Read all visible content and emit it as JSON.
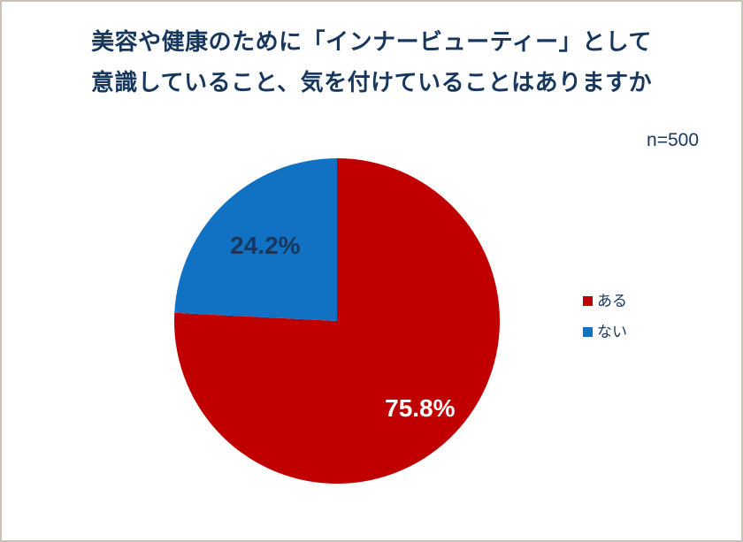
{
  "header": {
    "title_line1": "美容や健康のために「インナービューティー」として",
    "title_line2": "意識していること、気を付けていることはありますか",
    "sample_size": "n=500"
  },
  "colors": {
    "title_text": "#17375e",
    "legend_text": "#17375e",
    "series_aru": "#c00000",
    "series_nai": "#1172c4"
  },
  "chart_data": {
    "type": "pie",
    "title": "美容や健康のために「インナービューティー」として意識していること、気を付けていることはありますか",
    "sample_size_label": "n=500",
    "sample_size": 500,
    "unit": "%",
    "start_angle_deg": 0,
    "direction": "clockwise",
    "legend_position": "right",
    "categories": [
      "ある",
      "ない"
    ],
    "values": [
      75.8,
      24.2
    ],
    "slices": [
      {
        "label": "ある",
        "value": 75.8,
        "display": "75.8%",
        "color": "#c00000",
        "text_color": "#ffffff",
        "label_radius": 0.74
      },
      {
        "label": "ない",
        "value": 24.2,
        "display": "24.2%",
        "color": "#1172c4",
        "text_color": "#17375e",
        "label_radius": 0.64
      }
    ],
    "legend": {
      "items": [
        {
          "label": "ある",
          "color": "#c00000"
        },
        {
          "label": "ない",
          "color": "#1172c4"
        }
      ]
    }
  }
}
